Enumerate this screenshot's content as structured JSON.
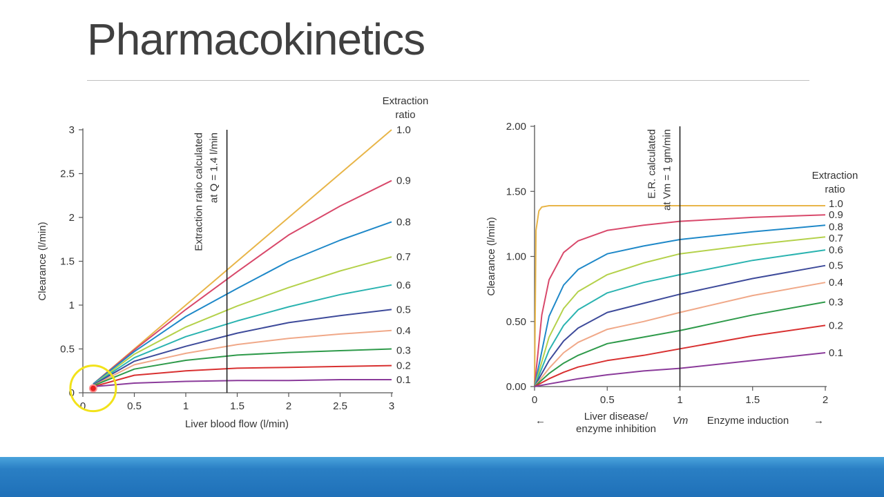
{
  "slide": {
    "title": "Pharmacokinetics"
  },
  "chart_data": [
    {
      "type": "line",
      "xlabel": "Liver blood flow (l/min)",
      "ylabel": "Clearance (l/min)",
      "xlim": [
        0,
        3
      ],
      "ylim": [
        0,
        3
      ],
      "xticks": [
        "0",
        "0.5",
        "1",
        "1.5",
        "2",
        "2.5",
        "3"
      ],
      "yticks": [
        "0",
        "0.5",
        "1",
        "1.5",
        "2",
        "2.5",
        "3"
      ],
      "legend_title": [
        "Extraction",
        "ratio"
      ],
      "ref_line": {
        "x": 1.4,
        "label": [
          "Extraction ratio calculated",
          "at Q = 1.4 l/min"
        ]
      },
      "series": [
        {
          "name": "1.0",
          "color": "#e8b548",
          "x": [
            0.1,
            0.5,
            1,
            1.5,
            2,
            2.5,
            3
          ],
          "y": [
            0.1,
            0.5,
            1,
            1.5,
            2,
            2.5,
            3
          ]
        },
        {
          "name": "0.9",
          "color": "#d8486a",
          "x": [
            0.1,
            0.5,
            1,
            1.5,
            2,
            2.5,
            3
          ],
          "y": [
            0.1,
            0.49,
            0.95,
            1.38,
            1.8,
            2.13,
            2.42
          ]
        },
        {
          "name": "0.8",
          "color": "#1e88c8",
          "x": [
            0.1,
            0.5,
            1,
            1.5,
            2,
            2.5,
            3
          ],
          "y": [
            0.1,
            0.47,
            0.87,
            1.19,
            1.5,
            1.74,
            1.95
          ]
        },
        {
          "name": "0.7",
          "color": "#b4d14a",
          "x": [
            0.1,
            0.5,
            1,
            1.5,
            2,
            2.5,
            3
          ],
          "y": [
            0.09,
            0.44,
            0.75,
            0.99,
            1.2,
            1.39,
            1.55
          ]
        },
        {
          "name": "0.6",
          "color": "#2ab3b0",
          "x": [
            0.1,
            0.5,
            1,
            1.5,
            2,
            2.5,
            3
          ],
          "y": [
            0.09,
            0.4,
            0.64,
            0.82,
            0.98,
            1.12,
            1.23
          ]
        },
        {
          "name": "0.5",
          "color": "#3d4a9a",
          "x": [
            0.1,
            0.5,
            1,
            1.5,
            2,
            2.5,
            3
          ],
          "y": [
            0.09,
            0.36,
            0.53,
            0.68,
            0.8,
            0.88,
            0.95
          ]
        },
        {
          "name": "0.4",
          "color": "#f0a888",
          "x": [
            0.1,
            0.5,
            1,
            1.5,
            2,
            2.5,
            3
          ],
          "y": [
            0.08,
            0.32,
            0.45,
            0.55,
            0.62,
            0.67,
            0.71
          ]
        },
        {
          "name": "0.3",
          "color": "#2e9a4a",
          "x": [
            0.1,
            0.5,
            1,
            1.5,
            2,
            2.5,
            3
          ],
          "y": [
            0.08,
            0.27,
            0.37,
            0.43,
            0.46,
            0.48,
            0.5
          ]
        },
        {
          "name": "0.2",
          "color": "#d83030",
          "x": [
            0.1,
            0.5,
            1,
            1.5,
            2,
            2.5,
            3
          ],
          "y": [
            0.07,
            0.2,
            0.25,
            0.28,
            0.29,
            0.3,
            0.31
          ]
        },
        {
          "name": "0.1",
          "color": "#8a3a9a",
          "x": [
            0.1,
            0.5,
            1,
            1.5,
            2,
            2.5,
            3
          ],
          "y": [
            0.07,
            0.11,
            0.13,
            0.14,
            0.14,
            0.15,
            0.15
          ]
        }
      ],
      "highlight_point": {
        "x": 0.1,
        "y": 0.05
      }
    },
    {
      "type": "line",
      "xlabel_left": [
        "Liver disease/",
        "enzyme inhibition"
      ],
      "xlabel_mid": "Vm",
      "xlabel_right": "Enzyme induction",
      "ylabel": "Clearance (l/min)",
      "xlim": [
        0,
        2
      ],
      "ylim": [
        0,
        2
      ],
      "xticks": [
        "0",
        "0.5",
        "1",
        "1.5",
        "2"
      ],
      "yticks": [
        "0.00",
        "0.50",
        "1.00",
        "1.50",
        "2.00"
      ],
      "legend_title": [
        "Extraction",
        "ratio"
      ],
      "ref_line": {
        "x": 1,
        "label": [
          "E.R. calculated",
          "at Vm = 1 gm/min"
        ]
      },
      "series": [
        {
          "name": "1.0",
          "color": "#e8b548",
          "x": [
            0,
            0.01,
            0.03,
            0.05,
            0.1,
            0.5,
            1,
            1.5,
            2
          ],
          "y": [
            0,
            1.2,
            1.35,
            1.38,
            1.39,
            1.39,
            1.39,
            1.39,
            1.39
          ]
        },
        {
          "name": "0.9",
          "color": "#d8486a",
          "x": [
            0,
            0.05,
            0.1,
            0.2,
            0.3,
            0.5,
            0.75,
            1,
            1.5,
            2
          ],
          "y": [
            0,
            0.55,
            0.82,
            1.03,
            1.12,
            1.2,
            1.24,
            1.27,
            1.3,
            1.32
          ]
        },
        {
          "name": "0.8",
          "color": "#1e88c8",
          "x": [
            0,
            0.1,
            0.2,
            0.3,
            0.5,
            0.75,
            1,
            1.5,
            2
          ],
          "y": [
            0,
            0.54,
            0.78,
            0.9,
            1.02,
            1.08,
            1.13,
            1.19,
            1.24
          ]
        },
        {
          "name": "0.7",
          "color": "#b4d14a",
          "x": [
            0,
            0.1,
            0.2,
            0.3,
            0.5,
            0.75,
            1,
            1.5,
            2
          ],
          "y": [
            0,
            0.38,
            0.6,
            0.73,
            0.86,
            0.95,
            1.02,
            1.09,
            1.15
          ]
        },
        {
          "name": "0.6",
          "color": "#2ab3b0",
          "x": [
            0,
            0.1,
            0.2,
            0.3,
            0.5,
            0.75,
            1,
            1.5,
            2
          ],
          "y": [
            0,
            0.28,
            0.47,
            0.59,
            0.72,
            0.8,
            0.86,
            0.97,
            1.05
          ]
        },
        {
          "name": "0.5",
          "color": "#3d4a9a",
          "x": [
            0,
            0.1,
            0.2,
            0.3,
            0.5,
            0.75,
            1,
            1.5,
            2
          ],
          "y": [
            0,
            0.2,
            0.35,
            0.45,
            0.57,
            0.64,
            0.71,
            0.83,
            0.93
          ]
        },
        {
          "name": "0.4",
          "color": "#f0a888",
          "x": [
            0,
            0.1,
            0.2,
            0.3,
            0.5,
            0.75,
            1,
            1.5,
            2
          ],
          "y": [
            0,
            0.14,
            0.26,
            0.34,
            0.44,
            0.5,
            0.57,
            0.7,
            0.8
          ]
        },
        {
          "name": "0.3",
          "color": "#2e9a4a",
          "x": [
            0,
            0.1,
            0.2,
            0.3,
            0.5,
            0.75,
            1,
            1.5,
            2
          ],
          "y": [
            0,
            0.1,
            0.18,
            0.24,
            0.33,
            0.38,
            0.43,
            0.55,
            0.65
          ]
        },
        {
          "name": "0.2",
          "color": "#d83030",
          "x": [
            0,
            0.1,
            0.2,
            0.3,
            0.5,
            0.75,
            1,
            1.5,
            2
          ],
          "y": [
            0,
            0.06,
            0.11,
            0.15,
            0.2,
            0.24,
            0.29,
            0.39,
            0.47
          ]
        },
        {
          "name": "0.1",
          "color": "#8a3a9a",
          "x": [
            0,
            0.1,
            0.2,
            0.3,
            0.5,
            0.75,
            1,
            1.5,
            2
          ],
          "y": [
            0,
            0.02,
            0.04,
            0.06,
            0.09,
            0.12,
            0.14,
            0.2,
            0.26
          ]
        }
      ]
    }
  ]
}
